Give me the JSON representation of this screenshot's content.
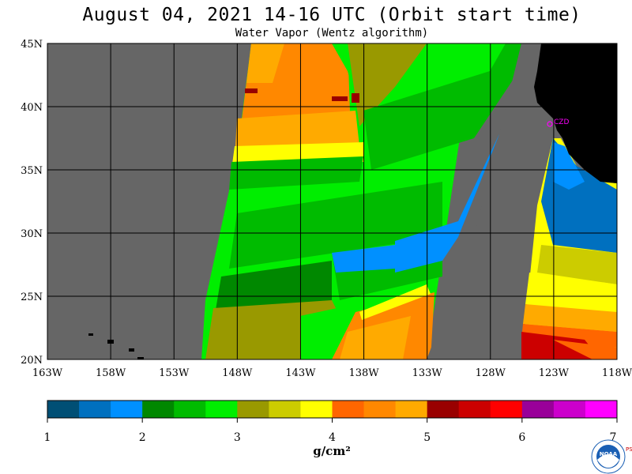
{
  "title": "August 04, 2021  14-16 UTC  (Orbit start time)",
  "subtitle": "Water Vapor (Wentz algorithm)",
  "map": {
    "lat_labels": [
      "45N",
      "40N",
      "35N",
      "30N",
      "25N",
      "20N"
    ],
    "lon_labels": [
      "163W",
      "158W",
      "153W",
      "148W",
      "143W",
      "138W",
      "133W",
      "128W",
      "123W",
      "118W"
    ],
    "station_label": "CZD",
    "colors": {
      "no_data": "#666666",
      "land": "#000000",
      "grid": "#000000",
      "station": "#ff00ff"
    }
  },
  "colorbar": {
    "colors": [
      "#004f75",
      "#0070bf",
      "#0090ff",
      "#008800",
      "#00bb00",
      "#00ee00",
      "#999900",
      "#cccc00",
      "#ffff00",
      "#ff6600",
      "#ff8800",
      "#ffaa00",
      "#990000",
      "#cc0000",
      "#ff0000",
      "#990099",
      "#cc00cc",
      "#ff00ff"
    ],
    "tick_labels": [
      "1",
      "2",
      "3",
      "4",
      "5",
      "6",
      "7"
    ],
    "unit_label": "g/cm²"
  },
  "logo": {
    "icon": "noaa-logo",
    "text": "NOAA",
    "side_text": "PSL"
  }
}
